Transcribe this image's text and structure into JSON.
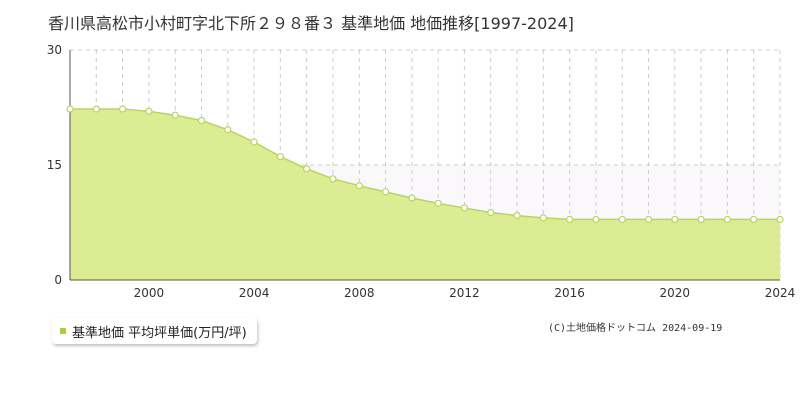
{
  "colors": {
    "fill": "#dbec93",
    "line": "#b9d65a",
    "marker_fill": "#ffffff",
    "marker_stroke": "#b9d65a",
    "upper_band": "#faf8fa",
    "legend_marker": "#a8cf3c",
    "grid": "#cccccc",
    "axis": "#555555"
  },
  "chart_data": {
    "type": "area",
    "title": "香川県高松市小村町字北下所２９８番３ 基準地価 地価推移[1997-2024]",
    "xlabel": "",
    "ylabel": "",
    "xlim": [
      1997,
      2024
    ],
    "ylim": [
      0,
      30
    ],
    "yticks": [
      "0",
      "15",
      "30"
    ],
    "xticks": [
      "2000",
      "2004",
      "2008",
      "2012",
      "2016",
      "2020",
      "2024"
    ],
    "grid": true,
    "legend_position": "bottom-left",
    "series": [
      {
        "name": "基準地価 平均坪単価(万円/坪)",
        "x": [
          1997,
          1998,
          1999,
          2000,
          2001,
          2002,
          2003,
          2004,
          2005,
          2006,
          2007,
          2008,
          2009,
          2010,
          2011,
          2012,
          2013,
          2014,
          2015,
          2016,
          2017,
          2018,
          2019,
          2020,
          2021,
          2022,
          2023,
          2024
        ],
        "values": [
          22.3,
          22.3,
          22.3,
          22.0,
          21.5,
          20.8,
          19.6,
          18.0,
          16.1,
          14.5,
          13.2,
          12.3,
          11.5,
          10.7,
          10.0,
          9.4,
          8.8,
          8.4,
          8.1,
          7.9,
          7.9,
          7.9,
          7.9,
          7.9,
          7.9,
          7.9,
          7.9,
          7.9
        ]
      }
    ]
  },
  "legend": {
    "label": "基準地価 平均坪単価(万円/坪)"
  },
  "footer": {
    "copyright": "(C)土地価格ドットコム 2024-09-19"
  }
}
